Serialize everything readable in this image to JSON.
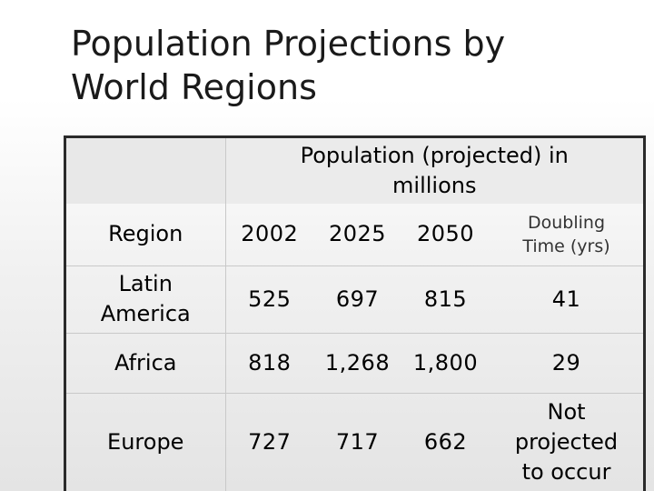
{
  "slide": {
    "title_line1": "Population Projections by",
    "title_line2": "World Regions"
  },
  "table": {
    "group_header_line1": "Population (projected) in",
    "group_header_line2": "millions",
    "col_region": "Region",
    "col_2002": "2002",
    "col_2025": "2025",
    "col_2050": "2050",
    "col_doubling_line1": "Doubling",
    "col_doubling_line2": "Time (yrs)",
    "rows": [
      {
        "region_line1": "Latin",
        "region_line2": "America",
        "y2002": "525",
        "y2025": "697",
        "y2050": "815",
        "doubling": "41"
      },
      {
        "region_line1": "Africa",
        "y2002": "818",
        "y2025": "1,268",
        "y2050": "1,800",
        "doubling": "29"
      },
      {
        "region_line1": "Europe",
        "y2002": "727",
        "y2025": "717",
        "y2050": "662",
        "doubling_line1": "Not",
        "doubling_line2": "projected",
        "doubling_line3": "to occur"
      }
    ]
  }
}
